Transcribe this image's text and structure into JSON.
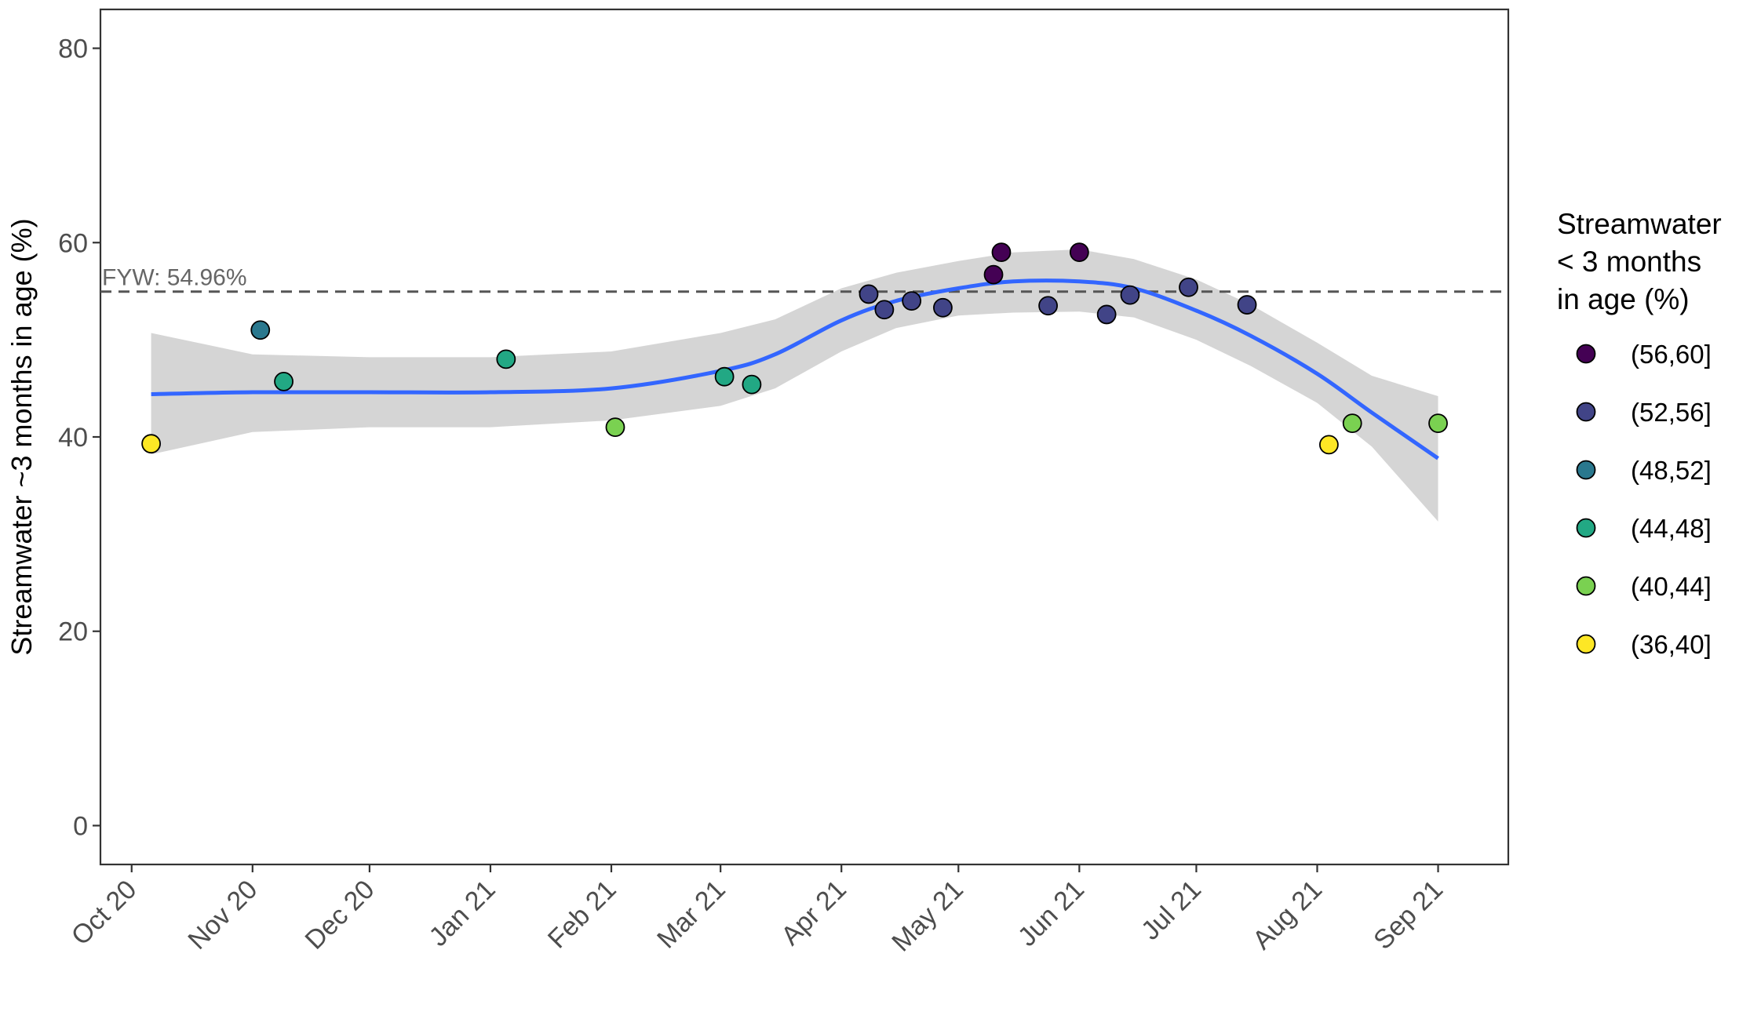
{
  "chart_data": {
    "type": "scatter",
    "xlabel": "",
    "ylabel": "Streamwater ~3 months in age (%)",
    "ylim": [
      -4,
      84
    ],
    "y_ticks": [
      "0",
      "20",
      "40",
      "60",
      "80"
    ],
    "x_ticks": [
      "Oct 20",
      "Nov 20",
      "Dec 20",
      "Jan 21",
      "Feb 21",
      "Mar 21",
      "Apr 21",
      "May 21",
      "Jun 21",
      "Jul 21",
      "Aug 21",
      "Sep 21"
    ],
    "x_tick_dates": [
      "2020-10-01",
      "2020-11-01",
      "2020-12-01",
      "2021-01-01",
      "2021-02-01",
      "2021-03-01",
      "2021-04-01",
      "2021-05-01",
      "2021-06-01",
      "2021-07-01",
      "2021-08-01",
      "2021-09-01"
    ],
    "xlim": [
      "2020-09-23",
      "2021-09-19"
    ],
    "grid": false,
    "reference_line": {
      "y": 54.96,
      "label": "FYW: 54.96%",
      "style": "dashed",
      "color": "#555555"
    },
    "points": [
      {
        "x": "2020-10-06",
        "y": 39.3,
        "group": "(36,40]"
      },
      {
        "x": "2020-11-03",
        "y": 51.0,
        "group": "(48,52]"
      },
      {
        "x": "2020-11-09",
        "y": 45.7,
        "group": "(44,48]"
      },
      {
        "x": "2021-01-05",
        "y": 48.0,
        "group": "(44,48]"
      },
      {
        "x": "2021-02-02",
        "y": 41.0,
        "group": "(40,44]"
      },
      {
        "x": "2021-03-02",
        "y": 46.2,
        "group": "(44,48]"
      },
      {
        "x": "2021-03-09",
        "y": 45.4,
        "group": "(44,48]"
      },
      {
        "x": "2021-04-08",
        "y": 54.7,
        "group": "(52,56]"
      },
      {
        "x": "2021-04-12",
        "y": 53.1,
        "group": "(52,56]"
      },
      {
        "x": "2021-04-19",
        "y": 54.0,
        "group": "(52,56]"
      },
      {
        "x": "2021-04-27",
        "y": 53.3,
        "group": "(52,56]"
      },
      {
        "x": "2021-05-10",
        "y": 56.7,
        "group": "(56,60]"
      },
      {
        "x": "2021-05-12",
        "y": 59.0,
        "group": "(56,60]"
      },
      {
        "x": "2021-05-24",
        "y": 53.5,
        "group": "(52,56]"
      },
      {
        "x": "2021-06-01",
        "y": 59.0,
        "group": "(56,60]"
      },
      {
        "x": "2021-06-08",
        "y": 52.6,
        "group": "(52,56]"
      },
      {
        "x": "2021-06-14",
        "y": 54.6,
        "group": "(52,56]"
      },
      {
        "x": "2021-06-29",
        "y": 55.4,
        "group": "(52,56]"
      },
      {
        "x": "2021-07-14",
        "y": 53.6,
        "group": "(52,56]"
      },
      {
        "x": "2021-08-04",
        "y": 39.2,
        "group": "(36,40]"
      },
      {
        "x": "2021-08-10",
        "y": 41.4,
        "group": "(40,44]"
      },
      {
        "x": "2021-09-01",
        "y": 41.4,
        "group": "(40,44]"
      }
    ],
    "smooth": {
      "color": "#3366ff",
      "band_color": "#d3d3d3",
      "x": [
        "2020-10-06",
        "2020-11-01",
        "2020-12-01",
        "2021-01-01",
        "2021-02-01",
        "2021-03-01",
        "2021-03-15",
        "2021-04-01",
        "2021-04-15",
        "2021-05-01",
        "2021-05-15",
        "2021-06-01",
        "2021-06-15",
        "2021-07-01",
        "2021-07-15",
        "2021-08-01",
        "2021-08-15",
        "2021-09-01"
      ],
      "y": [
        44.4,
        44.6,
        44.6,
        44.6,
        45.0,
        46.8,
        48.5,
        52.0,
        54.0,
        55.3,
        56.0,
        56.0,
        55.3,
        53.0,
        50.4,
        46.5,
        42.5,
        37.8
      ],
      "lower": [
        38.2,
        40.5,
        41.0,
        41.0,
        41.7,
        43.2,
        45.0,
        48.8,
        51.2,
        52.5,
        52.8,
        52.9,
        52.3,
        50.0,
        47.3,
        43.5,
        39.0,
        31.3
      ],
      "upper": [
        50.7,
        48.5,
        48.2,
        48.2,
        48.8,
        50.7,
        52.1,
        55.3,
        56.9,
        58.1,
        59.0,
        59.3,
        58.3,
        56.2,
        53.6,
        49.7,
        46.3,
        44.2
      ]
    },
    "legend": {
      "title_lines": [
        "Streamwater",
        "< 3 months",
        "in age (%)"
      ],
      "position": "right",
      "items": [
        {
          "label": "(56,60]",
          "color": "#440154"
        },
        {
          "label": "(52,56]",
          "color": "#414487"
        },
        {
          "label": "(48,52]",
          "color": "#2a788e"
        },
        {
          "label": "(44,48]",
          "color": "#22a884"
        },
        {
          "label": "(40,44]",
          "color": "#7ad151"
        },
        {
          "label": "(36,40]",
          "color": "#fde725"
        }
      ]
    }
  }
}
